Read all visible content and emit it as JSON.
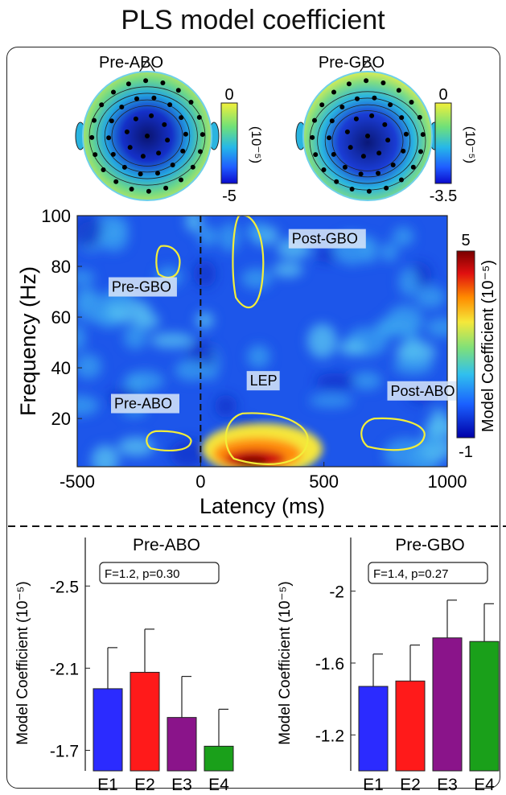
{
  "figure_title": "PLS model coefficient",
  "topomaps": [
    {
      "label": "Pre-ABO",
      "scale_max": "0",
      "scale_min": "-5",
      "unit": "(10⁻⁵)"
    },
    {
      "label": "Pre-GBO",
      "scale_max": "0",
      "scale_min": "-3.5",
      "unit": "(10⁻⁵)"
    }
  ],
  "colors": {
    "e1": "#2b2bff",
    "e2": "#ff1a1a",
    "e3": "#8a148a",
    "e4": "#1aa01a",
    "contour": "#f2ee3a"
  },
  "chart_data": [
    {
      "type": "heatmap",
      "xlabel": "Latency (ms)",
      "ylabel": "Frequency (Hz)",
      "xlim": [
        -500,
        1000
      ],
      "ylim": [
        1,
        100
      ],
      "xticks": [
        "-500",
        "0",
        "500",
        "1000"
      ],
      "yticks": [
        "20",
        "40",
        "60",
        "80",
        "100"
      ],
      "colorbar": {
        "label": "Model Coefficient",
        "unit": "(10⁻⁵)",
        "max": "5",
        "min": "-1"
      },
      "regions": [
        {
          "label": "Pre-GBO",
          "latency_range": [
            -180,
            -80
          ],
          "freq_range": [
            75,
            88
          ]
        },
        {
          "label": "Post-GBO",
          "latency_range": [
            130,
            260
          ],
          "freq_range": [
            62,
            100
          ]
        },
        {
          "label": "LEP",
          "latency_range": [
            100,
            450
          ],
          "freq_range": [
            1,
            22
          ]
        },
        {
          "label": "Pre-ABO",
          "latency_range": [
            -220,
            -30
          ],
          "freq_range": [
            7,
            15
          ]
        },
        {
          "label": "Post-ABO",
          "latency_range": [
            650,
            920
          ],
          "freq_range": [
            7,
            20
          ]
        }
      ]
    },
    {
      "type": "bar",
      "title": "Pre-ABO",
      "stat": "F=1.2, p=0.30",
      "ylabel": "Model Coefficient",
      "unit": "(10⁻⁵)",
      "categories": [
        "E1",
        "E2",
        "E3",
        "E4"
      ],
      "values": [
        -2.0,
        -2.08,
        -1.86,
        -1.72
      ],
      "errors": [
        0.2,
        0.21,
        0.2,
        0.18
      ],
      "ylim": [
        -1.6,
        -2.65
      ],
      "yticks": [
        "-2.5",
        "-2.1",
        "-1.7"
      ]
    },
    {
      "type": "bar",
      "title": "Pre-GBO",
      "stat": "F=1.4, p=0.27",
      "ylabel": "Model Coefficient",
      "unit": "(10⁻⁵)",
      "categories": [
        "E1",
        "E2",
        "E3",
        "E4"
      ],
      "values": [
        -1.47,
        -1.5,
        -1.74,
        -1.72
      ],
      "errors": [
        0.18,
        0.2,
        0.21,
        0.21
      ],
      "ylim": [
        -1.0,
        -2.2
      ],
      "yticks": [
        "-2",
        "-1.6",
        "-1.2"
      ]
    }
  ]
}
